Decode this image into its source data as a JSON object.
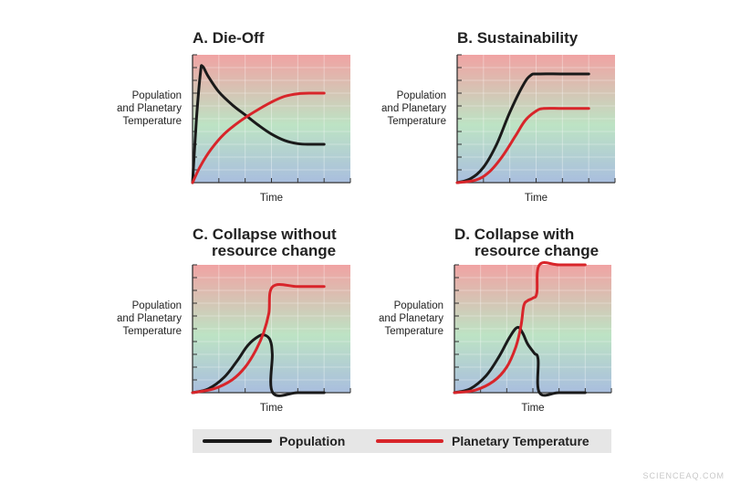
{
  "chart_data": [
    {
      "type": "line",
      "title_lines": [
        "A. Die-Off"
      ],
      "ylabel_lines": [
        "Population",
        "and Planetary",
        "Temperature"
      ],
      "xlabel": "Time",
      "xlim": [
        0,
        6
      ],
      "ylim": [
        0,
        10
      ],
      "grid": true,
      "series": [
        {
          "name": "Population",
          "color": "#1a1a1a",
          "points": [
            [
              0,
              0
            ],
            [
              0.15,
              5
            ],
            [
              0.3,
              8.6
            ],
            [
              0.38,
              9.1
            ],
            [
              0.6,
              8.3
            ],
            [
              1,
              7.1
            ],
            [
              1.5,
              6.1
            ],
            [
              2,
              5.3
            ],
            [
              2.5,
              4.5
            ],
            [
              3,
              3.8
            ],
            [
              3.5,
              3.3
            ],
            [
              4,
              3.05
            ],
            [
              4.5,
              3.0
            ],
            [
              5,
              3.0
            ]
          ]
        },
        {
          "name": "Planetary Temperature",
          "color": "#d8252a",
          "points": [
            [
              0,
              0
            ],
            [
              0.3,
              1.3
            ],
            [
              0.7,
              2.6
            ],
            [
              1.2,
              3.8
            ],
            [
              1.8,
              4.8
            ],
            [
              2.4,
              5.6
            ],
            [
              3,
              6.3
            ],
            [
              3.5,
              6.75
            ],
            [
              4,
              6.95
            ],
            [
              4.5,
              7.0
            ],
            [
              5,
              7.0
            ]
          ]
        }
      ]
    },
    {
      "type": "line",
      "title_lines": [
        "B. Sustainability"
      ],
      "ylabel_lines": [
        "Population",
        "and Planetary",
        "Temperature"
      ],
      "xlabel": "Time",
      "xlim": [
        0,
        6
      ],
      "ylim": [
        0,
        10
      ],
      "grid": true,
      "series": [
        {
          "name": "Population",
          "color": "#1a1a1a",
          "points": [
            [
              0,
              0
            ],
            [
              0.5,
              0.3
            ],
            [
              1,
              1.2
            ],
            [
              1.5,
              3
            ],
            [
              2,
              5.5
            ],
            [
              2.5,
              7.6
            ],
            [
              2.8,
              8.4
            ],
            [
              3.1,
              8.5
            ],
            [
              4,
              8.5
            ],
            [
              5,
              8.5
            ]
          ]
        },
        {
          "name": "Planetary Temperature",
          "color": "#d8252a",
          "points": [
            [
              0,
              0
            ],
            [
              0.7,
              0.2
            ],
            [
              1.2,
              0.8
            ],
            [
              1.7,
              2
            ],
            [
              2.2,
              3.6
            ],
            [
              2.6,
              4.9
            ],
            [
              3,
              5.6
            ],
            [
              3.3,
              5.8
            ],
            [
              4,
              5.8
            ],
            [
              5,
              5.8
            ]
          ]
        }
      ]
    },
    {
      "type": "line",
      "title_lines": [
        "C. Collapse without",
        "resource change"
      ],
      "ylabel_lines": [
        "Population",
        "and Planetary",
        "Temperature"
      ],
      "xlabel": "Time",
      "xlim": [
        0,
        6
      ],
      "ylim": [
        0,
        10
      ],
      "grid": true,
      "series": [
        {
          "name": "Population",
          "color": "#1a1a1a",
          "points": [
            [
              0,
              0
            ],
            [
              0.6,
              0.3
            ],
            [
              1.2,
              1.2
            ],
            [
              1.7,
              2.5
            ],
            [
              2.1,
              3.7
            ],
            [
              2.5,
              4.4
            ],
            [
              2.75,
              4.5
            ],
            [
              2.95,
              4.1
            ],
            [
              3.03,
              3
            ],
            [
              3.05,
              0
            ],
            [
              4,
              0
            ],
            [
              5,
              0
            ]
          ]
        },
        {
          "name": "Planetary Temperature",
          "color": "#d8252a",
          "points": [
            [
              0,
              0
            ],
            [
              0.8,
              0.3
            ],
            [
              1.5,
              1
            ],
            [
              2,
              2
            ],
            [
              2.4,
              3.3
            ],
            [
              2.7,
              4.7
            ],
            [
              2.9,
              6.2
            ],
            [
              3.05,
              8.3
            ],
            [
              4,
              8.3
            ],
            [
              5,
              8.3
            ]
          ]
        }
      ]
    },
    {
      "type": "line",
      "title_lines": [
        "D. Collapse with",
        "resource change"
      ],
      "ylabel_lines": [
        "Population",
        "and Planetary",
        "Temperature"
      ],
      "xlabel": "Time",
      "xlim": [
        0,
        6
      ],
      "ylim": [
        0,
        10
      ],
      "grid": true,
      "series": [
        {
          "name": "Population",
          "color": "#1a1a1a",
          "points": [
            [
              0,
              0
            ],
            [
              0.6,
              0.3
            ],
            [
              1.2,
              1.3
            ],
            [
              1.7,
              2.8
            ],
            [
              2.1,
              4.3
            ],
            [
              2.4,
              5.1
            ],
            [
              2.6,
              4.7
            ],
            [
              2.8,
              3.8
            ],
            [
              3.05,
              3.1
            ],
            [
              3.2,
              2.6
            ],
            [
              3.25,
              0
            ],
            [
              4,
              0
            ],
            [
              5,
              0
            ]
          ]
        },
        {
          "name": "Planetary Temperature",
          "color": "#d8252a",
          "points": [
            [
              0,
              0
            ],
            [
              0.8,
              0.2
            ],
            [
              1.5,
              0.9
            ],
            [
              2,
              2
            ],
            [
              2.35,
              3.6
            ],
            [
              2.55,
              5.3
            ],
            [
              2.65,
              6.8
            ],
            [
              2.8,
              7.2
            ],
            [
              3,
              7.4
            ],
            [
              3.15,
              7.8
            ],
            [
              3.25,
              10
            ],
            [
              4,
              10
            ],
            [
              5,
              10
            ]
          ]
        }
      ]
    }
  ],
  "legend": {
    "items": [
      {
        "label": "Population",
        "color": "#1a1a1a"
      },
      {
        "label": "Planetary Temperature",
        "color": "#d8252a"
      }
    ],
    "placement": "bottom"
  },
  "watermark": "SCIENCEAQ.COM",
  "colors": {
    "bg_top": "#f0a3a3",
    "bg_mid": "#bde3c4",
    "bg_bottom": "#a9bede",
    "axis": "#333333"
  }
}
